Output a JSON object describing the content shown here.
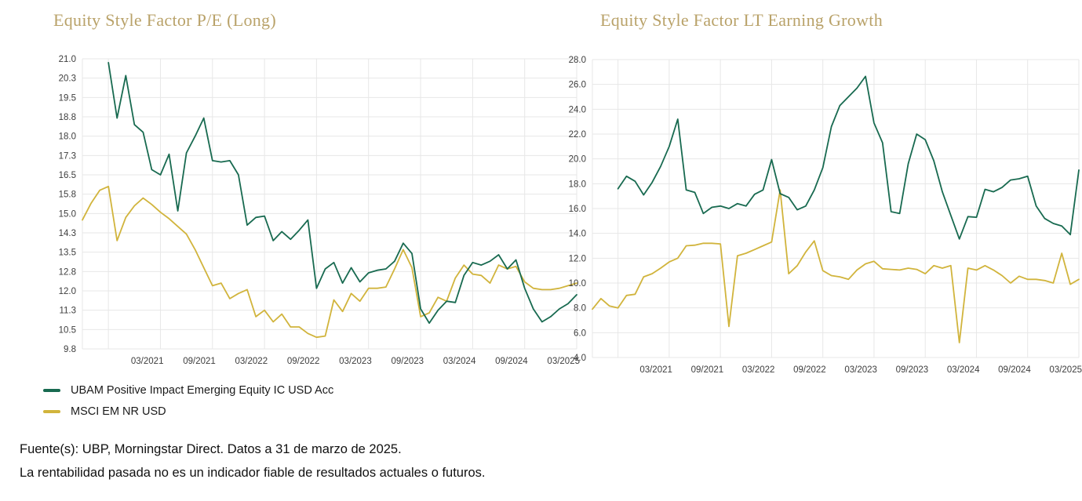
{
  "colors": {
    "fund": "#186a50",
    "benchmark": "#d1b43c",
    "title": "#b9a269",
    "grid": "#e7e7e7",
    "axis_text": "#3d3d3d",
    "text": "#111111"
  },
  "legend": {
    "items": [
      {
        "label": "UBAM Positive Impact Emerging Equity IC USD Acc",
        "color_key": "fund"
      },
      {
        "label": "MSCI EM NR USD",
        "color_key": "benchmark"
      }
    ]
  },
  "footer": {
    "line1": "Fuente(s): UBP, Morningstar Direct. Datos a 31 de marzo de 2025.",
    "line2": "La rentabilidad pasada no es un indicador fiable de resultados actuales o futuros."
  },
  "chart_data": [
    {
      "type": "line",
      "title": "Equity Style Factor P/E (Long)",
      "grid": true,
      "legend_position": "below-left",
      "n_points": 58,
      "x": [
        "2020-06",
        "2020-07",
        "2020-08",
        "2020-09",
        "2020-10",
        "2020-11",
        "2020-12",
        "2021-01",
        "2021-02",
        "2021-03",
        "2021-04",
        "2021-05",
        "2021-06",
        "2021-07",
        "2021-08",
        "2021-09",
        "2021-10",
        "2021-11",
        "2021-12",
        "2022-01",
        "2022-02",
        "2022-03",
        "2022-04",
        "2022-05",
        "2022-06",
        "2022-07",
        "2022-08",
        "2022-09",
        "2022-10",
        "2022-11",
        "2022-12",
        "2023-01",
        "2023-02",
        "2023-03",
        "2023-04",
        "2023-05",
        "2023-06",
        "2023-07",
        "2023-08",
        "2023-09",
        "2023-10",
        "2023-11",
        "2023-12",
        "2024-01",
        "2024-02",
        "2024-03",
        "2024-04",
        "2024-05",
        "2024-06",
        "2024-07",
        "2024-08",
        "2024-09",
        "2024-10",
        "2024-11",
        "2024-12",
        "2025-01",
        "2025-02",
        "2025-03"
      ],
      "x_tick_labels": [
        "03/2021",
        "09/2021",
        "03/2022",
        "09/2022",
        "03/2023",
        "09/2023",
        "03/2024",
        "09/2024",
        "03/2025"
      ],
      "x_tick_indices": [
        9,
        15,
        21,
        27,
        33,
        39,
        45,
        51,
        57
      ],
      "grid_indices": [
        3,
        9,
        15,
        21,
        27,
        33,
        39,
        45,
        51,
        57
      ],
      "ylim": [
        9.75,
        21.0
      ],
      "y_step": 0.75,
      "y_tick_labels": [
        "21.0",
        "20.3",
        "19.5",
        "18.8",
        "18.0",
        "17.3",
        "16.5",
        "15.8",
        "15.0",
        "14.3",
        "13.5",
        "12.8",
        "12.0",
        "11.3",
        "10.5",
        "9.8"
      ],
      "series": [
        {
          "name": "UBAM Positive Impact Emerging Equity IC USD Acc",
          "color_key": "fund",
          "values": [
            null,
            null,
            null,
            20.85,
            18.7,
            20.35,
            18.45,
            18.15,
            16.7,
            16.5,
            17.3,
            15.1,
            17.35,
            18.0,
            18.7,
            17.05,
            17.0,
            17.05,
            16.5,
            14.55,
            14.85,
            14.9,
            13.95,
            14.3,
            14.0,
            14.35,
            14.75,
            12.1,
            12.85,
            13.1,
            12.3,
            12.9,
            12.35,
            12.7,
            12.8,
            12.85,
            13.15,
            13.85,
            13.45,
            11.3,
            10.75,
            11.25,
            11.6,
            11.55,
            12.6,
            13.1,
            13.0,
            13.15,
            13.4,
            12.85,
            13.2,
            12.1,
            11.3,
            10.8,
            11.0,
            11.3,
            11.5,
            11.85
          ]
        },
        {
          "name": "MSCI EM NR USD",
          "color_key": "benchmark",
          "values": [
            14.75,
            15.4,
            15.9,
            16.05,
            13.95,
            14.85,
            15.3,
            15.6,
            15.35,
            15.05,
            14.8,
            14.5,
            14.2,
            13.6,
            12.9,
            12.2,
            12.3,
            11.7,
            11.9,
            12.05,
            11.0,
            11.25,
            10.8,
            11.1,
            10.6,
            10.6,
            10.35,
            10.2,
            10.25,
            11.65,
            11.2,
            11.9,
            11.6,
            12.1,
            12.1,
            12.15,
            12.85,
            13.6,
            12.9,
            11.0,
            11.15,
            11.75,
            11.6,
            12.5,
            13.0,
            12.65,
            12.6,
            12.3,
            13.0,
            12.85,
            12.95,
            12.35,
            12.1,
            12.05,
            12.05,
            12.1,
            12.2,
            12.3
          ]
        }
      ]
    },
    {
      "type": "line",
      "title": "Equity Style Factor LT Earning Growth",
      "grid": true,
      "legend_position": "below-left",
      "n_points": 58,
      "x": [
        "2020-06",
        "2020-07",
        "2020-08",
        "2020-09",
        "2020-10",
        "2020-11",
        "2020-12",
        "2021-01",
        "2021-02",
        "2021-03",
        "2021-04",
        "2021-05",
        "2021-06",
        "2021-07",
        "2021-08",
        "2021-09",
        "2021-10",
        "2021-11",
        "2021-12",
        "2022-01",
        "2022-02",
        "2022-03",
        "2022-04",
        "2022-05",
        "2022-06",
        "2022-07",
        "2022-08",
        "2022-09",
        "2022-10",
        "2022-11",
        "2022-12",
        "2023-01",
        "2023-02",
        "2023-03",
        "2023-04",
        "2023-05",
        "2023-06",
        "2023-07",
        "2023-08",
        "2023-09",
        "2023-10",
        "2023-11",
        "2023-12",
        "2024-01",
        "2024-02",
        "2024-03",
        "2024-04",
        "2024-05",
        "2024-06",
        "2024-07",
        "2024-08",
        "2024-09",
        "2024-10",
        "2024-11",
        "2024-12",
        "2025-01",
        "2025-02",
        "2025-03"
      ],
      "x_tick_labels": [
        "03/2021",
        "09/2021",
        "03/2022",
        "09/2022",
        "03/2023",
        "09/2023",
        "03/2024",
        "09/2024",
        "03/2025"
      ],
      "x_tick_indices": [
        9,
        15,
        21,
        27,
        33,
        39,
        45,
        51,
        57
      ],
      "grid_indices": [
        3,
        9,
        15,
        21,
        27,
        33,
        39,
        45,
        51,
        57
      ],
      "ylim": [
        4.0,
        28.0
      ],
      "y_step": 2.0,
      "y_tick_labels": [
        "28.0",
        "26.0",
        "24.0",
        "22.0",
        "20.0",
        "18.0",
        "16.0",
        "14.0",
        "12.0",
        "10.0",
        "8.0",
        "6.0",
        "4.0"
      ],
      "series": [
        {
          "name": "UBAM Positive Impact Emerging Equity IC USD Acc",
          "color_key": "fund",
          "values": [
            null,
            null,
            null,
            17.6,
            18.6,
            18.2,
            17.1,
            18.1,
            19.4,
            21.0,
            23.2,
            17.5,
            17.3,
            15.6,
            16.1,
            16.2,
            16.0,
            16.4,
            16.2,
            17.15,
            17.5,
            19.95,
            17.2,
            16.9,
            15.9,
            16.2,
            17.5,
            19.3,
            22.6,
            24.3,
            25.0,
            25.7,
            26.65,
            22.9,
            21.3,
            15.75,
            15.6,
            19.6,
            22.0,
            21.55,
            19.85,
            17.35,
            15.45,
            13.55,
            15.35,
            15.3,
            17.55,
            17.35,
            17.7,
            18.3,
            18.4,
            18.6,
            16.2,
            15.2,
            14.8,
            14.6,
            13.9,
            19.1
          ]
        },
        {
          "name": "MSCI EM NR USD",
          "color_key": "benchmark",
          "values": [
            7.9,
            8.75,
            8.15,
            8.0,
            9.0,
            9.1,
            10.5,
            10.75,
            11.2,
            11.7,
            12.0,
            13.0,
            13.05,
            13.2,
            13.2,
            13.15,
            6.5,
            12.2,
            12.4,
            12.7,
            13.0,
            13.3,
            17.5,
            10.75,
            11.4,
            12.5,
            13.4,
            11.0,
            10.6,
            10.5,
            10.3,
            11.05,
            11.55,
            11.75,
            11.15,
            11.1,
            11.05,
            11.2,
            11.1,
            10.75,
            11.4,
            11.2,
            11.4,
            5.2,
            11.2,
            11.05,
            11.4,
            11.05,
            10.6,
            10.0,
            10.55,
            10.3,
            10.3,
            10.2,
            10.0,
            12.4,
            9.9,
            10.3
          ]
        }
      ]
    }
  ]
}
